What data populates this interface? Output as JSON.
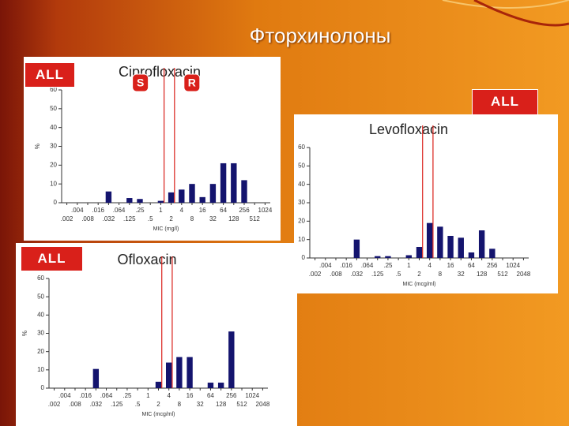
{
  "title": "Фторхинолоны",
  "chart_data": [
    {
      "type": "bar",
      "title": "Ciprofloxacin",
      "tag": "ALL",
      "ylabel": "%",
      "xlabel": "MIC (mg/l)",
      "categories": [
        ".002",
        ".004",
        ".008",
        ".016",
        ".032",
        ".064",
        ".125",
        ".25",
        ".5",
        "1",
        "2",
        "4",
        "8",
        "16",
        "32",
        "64",
        "128",
        "256",
        "512",
        "1024"
      ],
      "values": [
        0,
        0,
        0,
        0,
        6,
        0,
        2.5,
        2,
        0,
        1,
        5.5,
        7,
        10,
        3,
        10,
        21,
        21,
        12,
        0,
        0
      ],
      "color": "#14146e",
      "ylim": [
        0,
        60
      ],
      "yticks": [
        0,
        10,
        20,
        30,
        40,
        50,
        60
      ],
      "breakpoints": [
        1,
        2
      ],
      "annotations": [
        "S",
        "R"
      ]
    },
    {
      "type": "bar",
      "title": "Levofloxacin",
      "tag": "ALL",
      "ylabel": "%",
      "xlabel": "MIC (mcg/ml)",
      "categories": [
        ".002",
        ".004",
        ".008",
        ".016",
        ".032",
        ".064",
        ".125",
        ".25",
        ".5",
        "1",
        "2",
        "4",
        "8",
        "16",
        "32",
        "64",
        "128",
        "256",
        "512",
        "1024",
        "2048"
      ],
      "values": [
        0,
        0,
        0,
        0,
        10,
        0,
        1,
        1,
        0,
        1.5,
        6,
        19,
        17,
        12,
        11,
        3,
        15,
        5,
        0,
        0,
        0
      ],
      "color": "#14146e",
      "ylim": [
        0,
        60
      ],
      "yticks": [
        0,
        10,
        20,
        30,
        40,
        50,
        60
      ],
      "breakpoints": [
        2,
        4
      ]
    },
    {
      "type": "bar",
      "title": "Ofloxacin",
      "tag": "ALL",
      "ylabel": "%",
      "xlabel": "MIC (mcg/ml)",
      "categories": [
        ".002",
        ".004",
        ".008",
        ".016",
        ".032",
        ".064",
        ".125",
        ".25",
        ".5",
        "1",
        "2",
        "4",
        "8",
        "16",
        "32",
        "64",
        "128",
        "256",
        "512",
        "1024",
        "2048"
      ],
      "values": [
        0,
        0,
        0,
        0,
        10.5,
        0,
        0,
        0,
        0,
        0,
        3.5,
        14,
        17,
        17,
        0,
        3,
        3,
        31,
        0,
        0,
        0
      ],
      "color": "#14146e",
      "ylim": [
        0,
        60
      ],
      "yticks": [
        0,
        10,
        20,
        30,
        40,
        50,
        60
      ],
      "breakpoints": [
        2,
        4
      ]
    }
  ]
}
